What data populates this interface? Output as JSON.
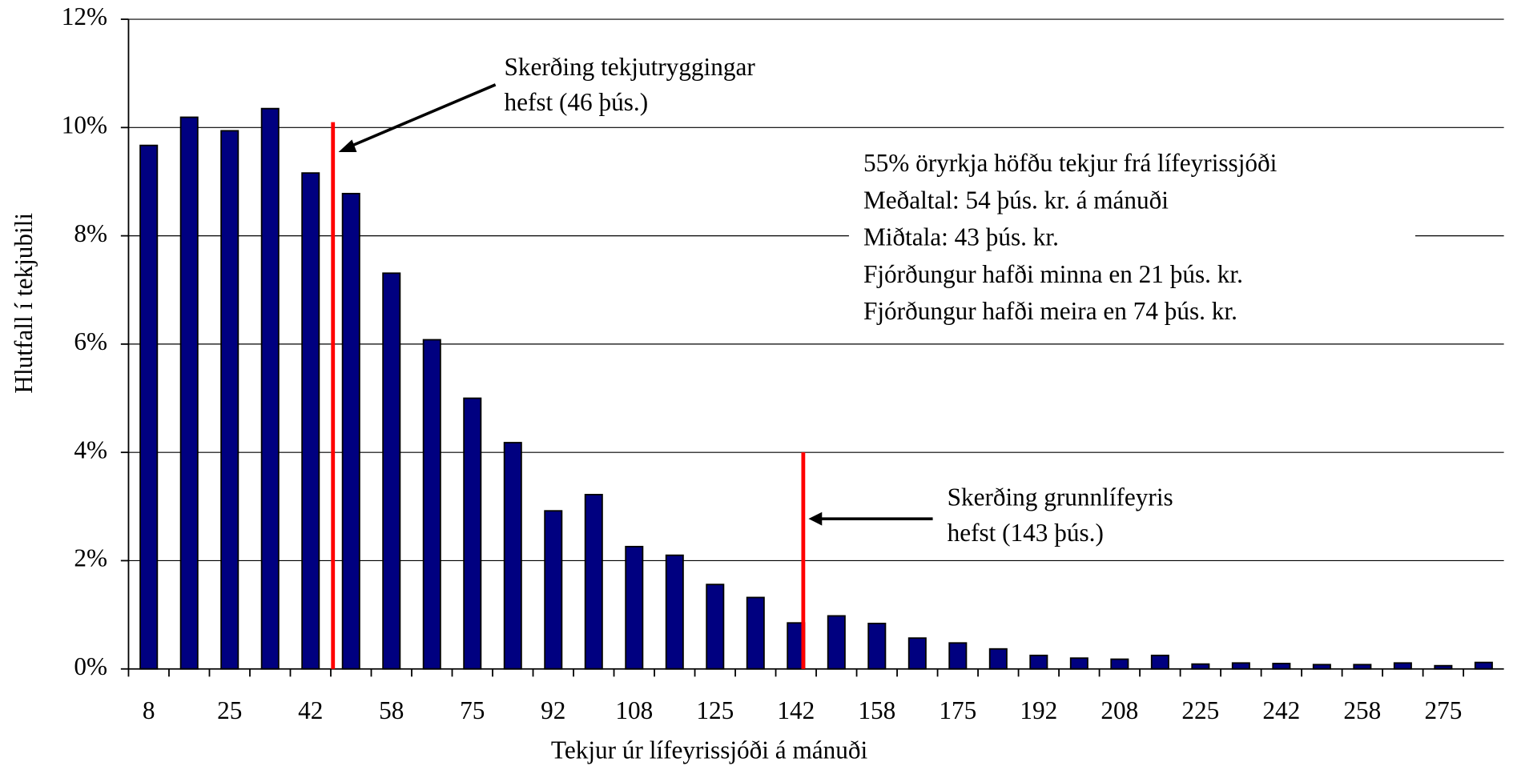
{
  "chart_data": {
    "type": "bar",
    "x_label": "Tekjur úr lífeyrissjóði á mánuði",
    "y_label": "Hlutfall í tekjubili",
    "categories": [
      "8",
      null,
      "25",
      null,
      "42",
      null,
      "58",
      null,
      "75",
      null,
      "92",
      null,
      "108",
      null,
      "125",
      null,
      "142",
      null,
      "158",
      null,
      "175",
      null,
      "192",
      null,
      "208",
      null,
      "225",
      null,
      "242",
      null,
      "258",
      null,
      "275",
      null
    ],
    "values": [
      9.67,
      10.19,
      9.94,
      10.35,
      9.16,
      8.78,
      7.31,
      6.08,
      5.0,
      4.18,
      2.92,
      3.22,
      2.26,
      2.1,
      1.56,
      1.32,
      0.85,
      0.98,
      0.84,
      0.57,
      0.48,
      0.37,
      0.25,
      0.2,
      0.18,
      0.25,
      0.09,
      0.11,
      0.1,
      0.08,
      0.08,
      0.11,
      0.06,
      0.12
    ],
    "color": "#000080",
    "ylim": [
      0,
      12
    ],
    "yticks": [
      {
        "value": 0,
        "label": "0%"
      },
      {
        "value": 2,
        "label": "2%"
      },
      {
        "value": 4,
        "label": "4%"
      },
      {
        "value": 6,
        "label": "6%"
      },
      {
        "value": 8,
        "label": "8%"
      },
      {
        "value": 10,
        "label": "10%"
      },
      {
        "value": 12,
        "label": "12%"
      }
    ],
    "grid": true,
    "reference_lines": [
      {
        "x": 46,
        "top": 10.1,
        "color": "#ff0000",
        "label": [
          "Skerðing tekjutryggingar",
          "hefst (46 þús.)"
        ]
      },
      {
        "x": 143,
        "top": 4.0,
        "color": "#ff0000",
        "label": [
          "Skerðing grunnlífeyris",
          "hefst (143 þús.)"
        ]
      }
    ],
    "notes": [
      "55% öryrkja höfðu tekjur frá lífeyrissjóði",
      "Meðaltal:  54 þús. kr. á mánuði",
      "Miðtala: 43 þús. kr.",
      "Fjórðungur hafði minna en 21 þús. kr.",
      "Fjórðungur hafði meira en 74 þús. kr."
    ]
  }
}
